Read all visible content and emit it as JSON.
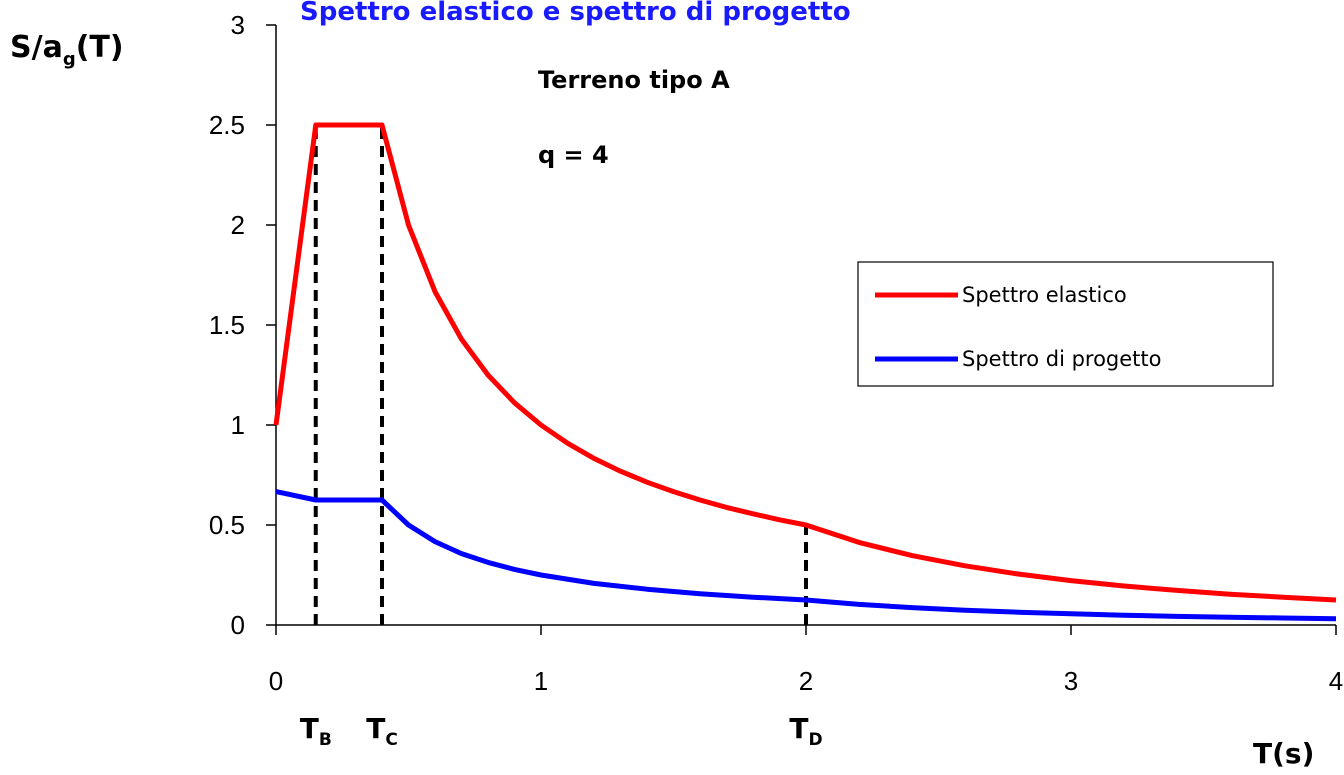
{
  "chart_data": {
    "type": "line",
    "title_partial": "Spettro elastico e spettro di progetto",
    "ylabel": {
      "main": "S/a",
      "sub": "g",
      "tail": "(T)"
    },
    "xlabel": "T(s)",
    "xlim": [
      0,
      4
    ],
    "ylim": [
      0,
      3
    ],
    "x_ticks": [
      "0",
      "1",
      "2",
      "3",
      "4"
    ],
    "y_ticks": [
      "0",
      "0.5",
      "1",
      "1.5",
      "2",
      "2.5",
      "3"
    ],
    "grid": false,
    "legend_position": "right",
    "annotations": {
      "line1": "Terreno tipo A",
      "line2": "q = 4"
    },
    "periods": [
      {
        "name": "T",
        "sub": "B",
        "x": 0.15
      },
      {
        "name": "T",
        "sub": "C",
        "x": 0.4
      },
      {
        "name": "T",
        "sub": "D",
        "x": 2.0
      }
    ],
    "series": [
      {
        "name": "Spettro elastico",
        "color": "#ff0000",
        "points": [
          [
            0,
            1
          ],
          [
            0.15,
            2.5
          ],
          [
            0.4,
            2.5
          ],
          [
            0.5,
            2.0
          ],
          [
            0.6,
            1.667
          ],
          [
            0.7,
            1.429
          ],
          [
            0.8,
            1.25
          ],
          [
            0.9,
            1.111
          ],
          [
            1.0,
            1.0
          ],
          [
            1.1,
            0.909
          ],
          [
            1.2,
            0.833
          ],
          [
            1.3,
            0.769
          ],
          [
            1.4,
            0.714
          ],
          [
            1.5,
            0.667
          ],
          [
            1.6,
            0.625
          ],
          [
            1.7,
            0.588
          ],
          [
            1.8,
            0.556
          ],
          [
            1.9,
            0.526
          ],
          [
            2.0,
            0.5
          ],
          [
            2.2,
            0.413
          ],
          [
            2.4,
            0.347
          ],
          [
            2.6,
            0.296
          ],
          [
            2.8,
            0.255
          ],
          [
            3.0,
            0.222
          ],
          [
            3.2,
            0.195
          ],
          [
            3.4,
            0.173
          ],
          [
            3.6,
            0.154
          ],
          [
            3.8,
            0.139
          ],
          [
            4.0,
            0.125
          ]
        ]
      },
      {
        "name": "Spettro di progetto",
        "color": "#0000ff",
        "points": [
          [
            0,
            0.667
          ],
          [
            0.15,
            0.625
          ],
          [
            0.4,
            0.625
          ],
          [
            0.5,
            0.5
          ],
          [
            0.6,
            0.417
          ],
          [
            0.7,
            0.357
          ],
          [
            0.8,
            0.313
          ],
          [
            0.9,
            0.278
          ],
          [
            1.0,
            0.25
          ],
          [
            1.2,
            0.208
          ],
          [
            1.4,
            0.179
          ],
          [
            1.6,
            0.156
          ],
          [
            1.8,
            0.139
          ],
          [
            2.0,
            0.125
          ],
          [
            2.2,
            0.103
          ],
          [
            2.4,
            0.087
          ],
          [
            2.6,
            0.074
          ],
          [
            2.8,
            0.064
          ],
          [
            3.0,
            0.056
          ],
          [
            3.2,
            0.049
          ],
          [
            3.4,
            0.043
          ],
          [
            3.6,
            0.039
          ],
          [
            3.8,
            0.035
          ],
          [
            4.0,
            0.031
          ]
        ]
      }
    ]
  }
}
